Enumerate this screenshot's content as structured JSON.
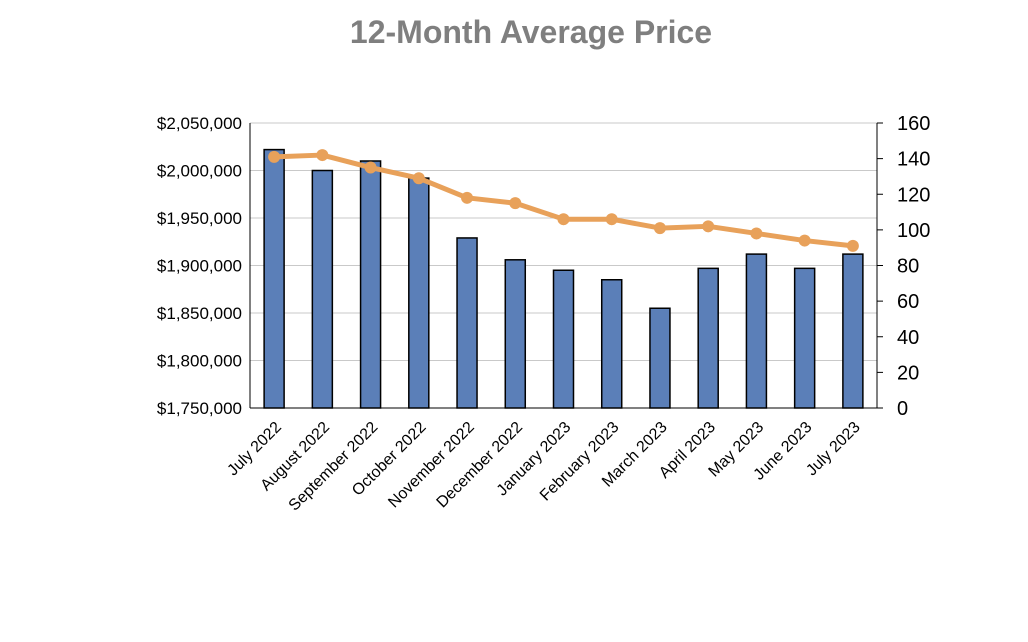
{
  "chart_data": {
    "type": "bar",
    "title": "12-Month Average Price",
    "categories": [
      "July 2022",
      "August 2022",
      "September 2022",
      "October 2022",
      "November 2022",
      "December 2022",
      "January 2023",
      "February 2023",
      "March 2023",
      "April 2023",
      "May 2023",
      "June 2023",
      "July 2023"
    ],
    "series": [
      {
        "type": "bar",
        "axis": "left",
        "color": "#5b7fb8",
        "values": [
          2022000,
          2000000,
          2010000,
          1992000,
          1929000,
          1906000,
          1895000,
          1885000,
          1855000,
          1897000,
          1912000,
          1897000,
          1912000
        ]
      },
      {
        "type": "line",
        "axis": "right",
        "color": "#e8a15a",
        "values": [
          141,
          142,
          135,
          129,
          118,
          115,
          106,
          106,
          101,
          102,
          98,
          94,
          91
        ]
      }
    ],
    "ylim_left": [
      1750000,
      2050000
    ],
    "yticks_left": [
      "$1,750,000",
      "$1,800,000",
      "$1,850,000",
      "$1,900,000",
      "$1,950,000",
      "$2,000,000",
      "$2,050,000"
    ],
    "ylim_right": [
      0,
      160
    ],
    "yticks_right": [
      "0",
      "20",
      "40",
      "60",
      "80",
      "100",
      "120",
      "140",
      "160"
    ],
    "grid": true,
    "legend": "none"
  }
}
